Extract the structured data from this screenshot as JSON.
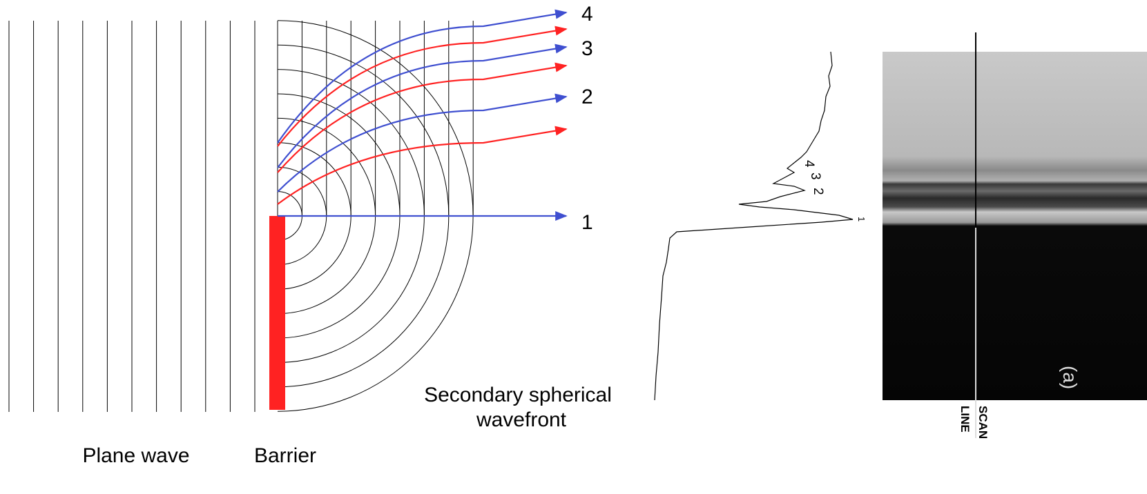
{
  "ray_labels": [
    "4",
    "3",
    "2",
    "1"
  ],
  "wavefront_label": [
    "Secondary spherical",
    "wavefront"
  ],
  "plane_wave_label": "Plane wave",
  "barrier_label": "Barrier",
  "trace_labels": [
    "4",
    "3",
    "2",
    "1"
  ],
  "scan_line_labels": [
    "SCAN",
    "LINE"
  ],
  "panel_label": "(a)"
}
